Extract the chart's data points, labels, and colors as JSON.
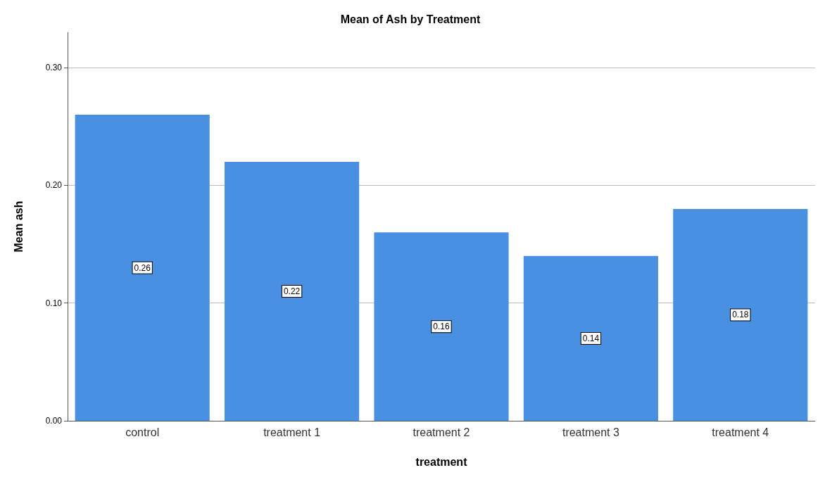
{
  "chart_data": {
    "type": "bar",
    "title": "Mean of Ash by Treatment",
    "xlabel": "treatment",
    "ylabel": "Mean ash",
    "categories": [
      "control",
      "treatment 1",
      "treatment 2",
      "treatment 3",
      "treatment 4"
    ],
    "values": [
      0.26,
      0.22,
      0.16,
      0.14,
      0.18
    ],
    "color": "#4a90e2",
    "ylim": [
      0,
      0.33
    ],
    "yticks": [
      {
        "value": 0,
        "label": "0.00"
      },
      {
        "value": 0.1,
        "label": "0.10"
      },
      {
        "value": 0.2,
        "label": "0.20"
      },
      {
        "value": 0.3,
        "label": "0.30"
      }
    ],
    "grid": "y",
    "data_labels": true
  }
}
